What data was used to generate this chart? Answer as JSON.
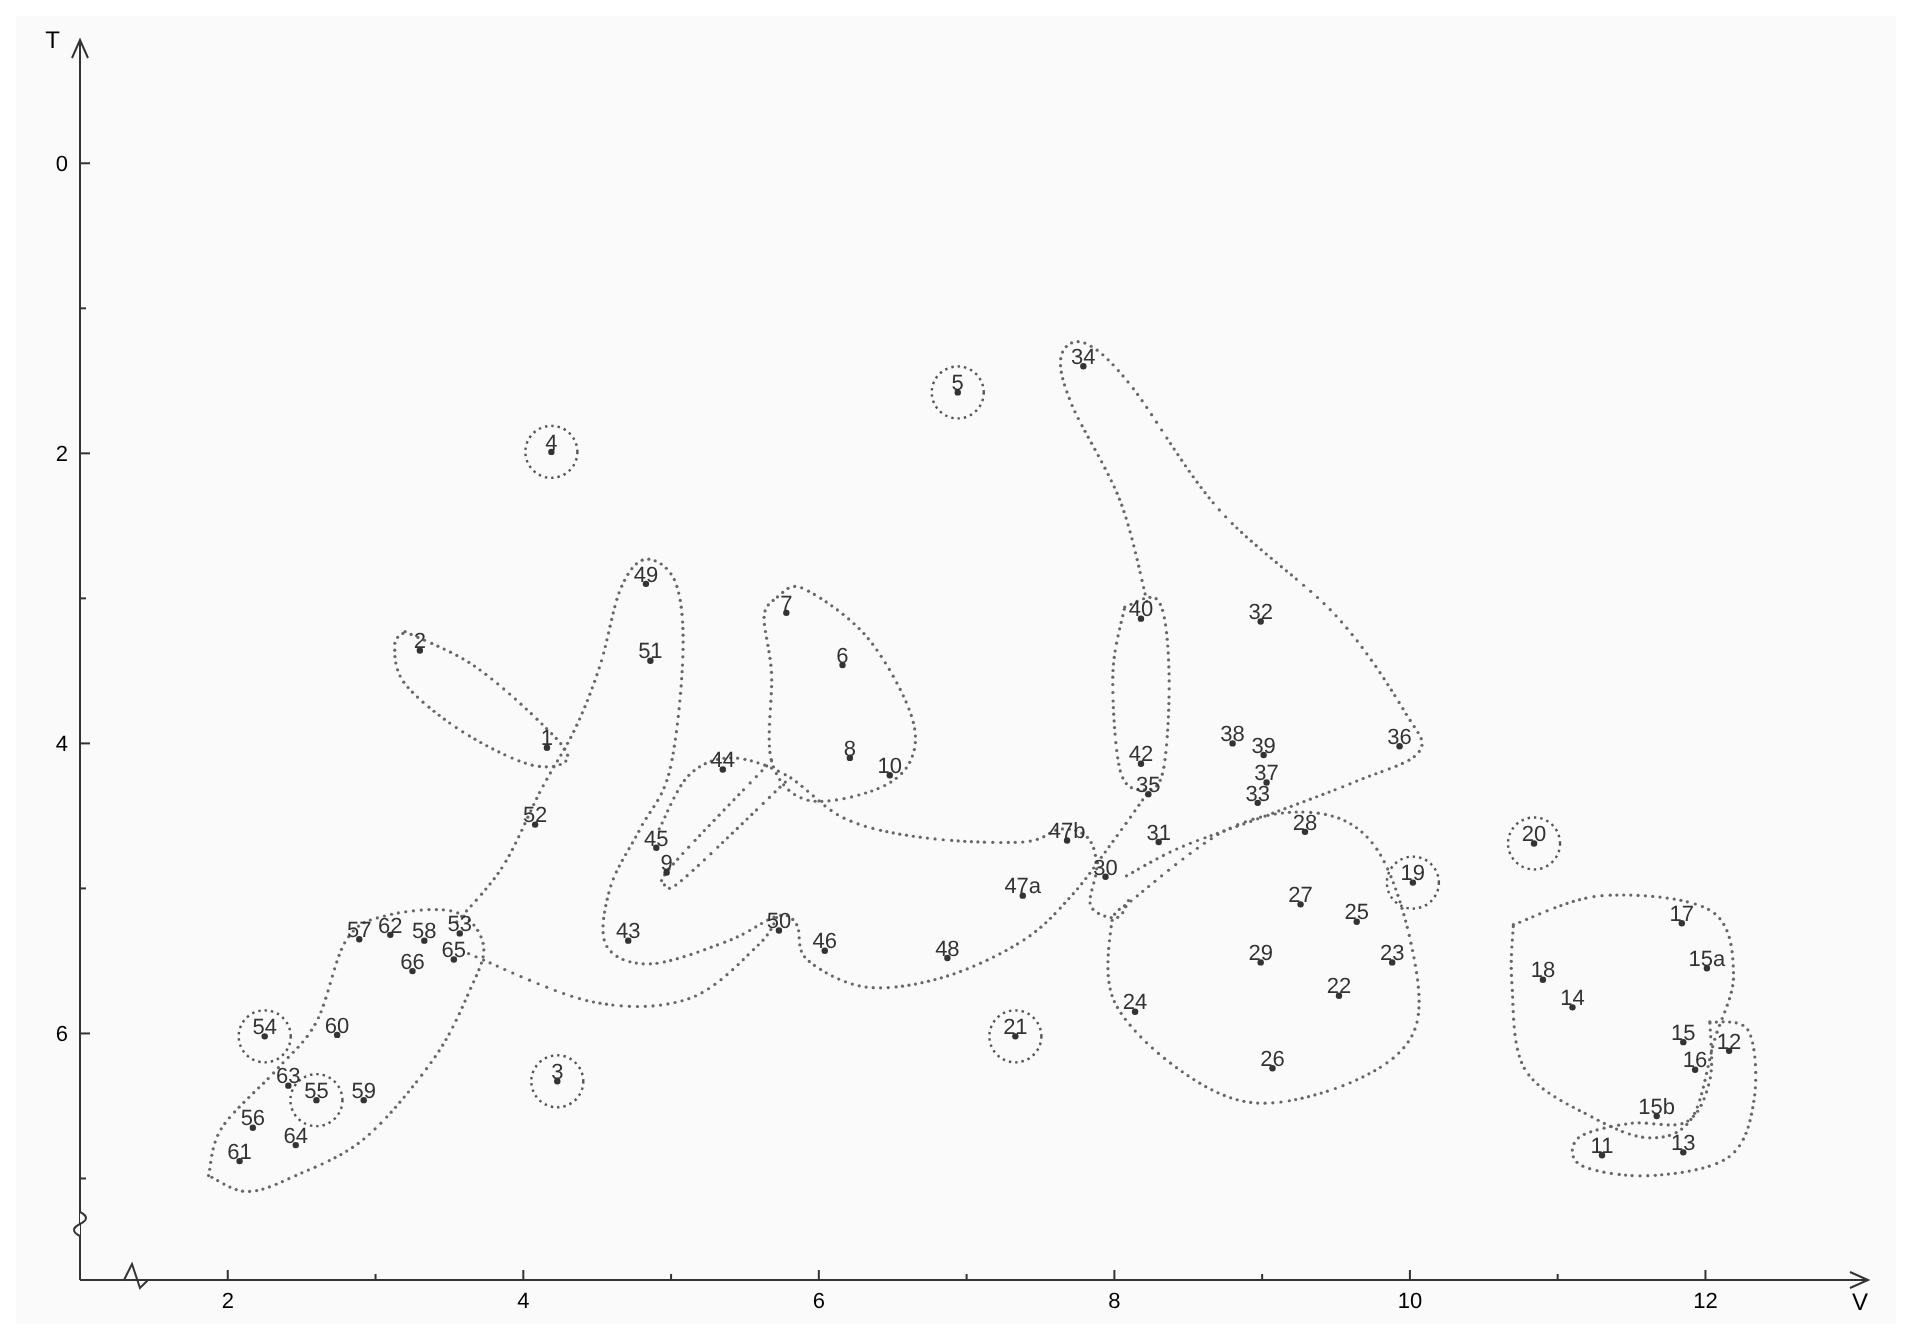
{
  "chart_data": {
    "type": "scatter",
    "xlabel": "V",
    "ylabel": "T",
    "xlim": [
      1,
      13.1
    ],
    "ylim": [
      7.7,
      -0.85
    ],
    "xticks": [
      2,
      {
        "value": 3,
        "label": null
      },
      4,
      {
        "value": 5,
        "label": null
      },
      6,
      {
        "value": 7,
        "label": null
      },
      8,
      {
        "value": 9,
        "label": null
      },
      10,
      {
        "value": 11,
        "label": null
      },
      12
    ],
    "yticks": [
      0,
      {
        "value": 1,
        "label": null
      },
      2,
      {
        "value": 3,
        "label": null
      },
      4,
      {
        "value": 5,
        "label": null
      },
      6,
      {
        "value": 7,
        "label": null
      }
    ],
    "grid": false,
    "annotations": [
      {
        "text": "1",
        "x": 4.16,
        "y": 4.03
      },
      {
        "text": "2",
        "x": 3.3,
        "y": 3.36
      },
      {
        "text": "3",
        "x": 4.23,
        "y": 6.33
      },
      {
        "text": "4",
        "x": 4.19,
        "y": 1.99
      },
      {
        "text": "5",
        "x": 6.94,
        "y": 1.58
      },
      {
        "text": "6",
        "x": 6.16,
        "y": 3.46
      },
      {
        "text": "7",
        "x": 5.78,
        "y": 3.1
      },
      {
        "text": "8",
        "x": 6.21,
        "y": 4.1
      },
      {
        "text": "9",
        "x": 4.97,
        "y": 4.89
      },
      {
        "text": "10",
        "x": 6.48,
        "y": 4.22
      },
      {
        "text": "11",
        "x": 11.3,
        "y": 6.84
      },
      {
        "text": "12",
        "x": 12.16,
        "y": 6.12
      },
      {
        "text": "13",
        "x": 11.85,
        "y": 6.82
      },
      {
        "text": "14",
        "x": 11.1,
        "y": 5.82
      },
      {
        "text": "15",
        "x": 11.85,
        "y": 6.06
      },
      {
        "text": "15a",
        "x": 12.01,
        "y": 5.55
      },
      {
        "text": "15b",
        "x": 11.67,
        "y": 6.57
      },
      {
        "text": "16",
        "x": 11.93,
        "y": 6.25
      },
      {
        "text": "17",
        "x": 11.84,
        "y": 5.24
      },
      {
        "text": "18",
        "x": 10.9,
        "y": 5.63
      },
      {
        "text": "19",
        "x": 10.02,
        "y": 4.96
      },
      {
        "text": "20",
        "x": 10.84,
        "y": 4.69
      },
      {
        "text": "21",
        "x": 7.33,
        "y": 6.02
      },
      {
        "text": "22",
        "x": 9.52,
        "y": 5.74
      },
      {
        "text": "23",
        "x": 9.88,
        "y": 5.51
      },
      {
        "text": "24",
        "x": 8.14,
        "y": 5.85
      },
      {
        "text": "25",
        "x": 9.64,
        "y": 5.23
      },
      {
        "text": "26",
        "x": 9.07,
        "y": 6.24
      },
      {
        "text": "27",
        "x": 9.26,
        "y": 5.11
      },
      {
        "text": "28",
        "x": 9.29,
        "y": 4.61
      },
      {
        "text": "29",
        "x": 8.99,
        "y": 5.51
      },
      {
        "text": "30",
        "x": 7.94,
        "y": 4.92
      },
      {
        "text": "31",
        "x": 8.3,
        "y": 4.68
      },
      {
        "text": "32",
        "x": 8.99,
        "y": 3.16
      },
      {
        "text": "33",
        "x": 8.97,
        "y": 4.41
      },
      {
        "text": "34",
        "x": 7.79,
        "y": 1.4
      },
      {
        "text": "35",
        "x": 8.23,
        "y": 4.35
      },
      {
        "text": "36",
        "x": 9.93,
        "y": 4.02
      },
      {
        "text": "37",
        "x": 9.03,
        "y": 4.27
      },
      {
        "text": "38",
        "x": 8.8,
        "y": 4.0
      },
      {
        "text": "39",
        "x": 9.01,
        "y": 4.08
      },
      {
        "text": "40",
        "x": 8.18,
        "y": 3.14
      },
      {
        "text": "42",
        "x": 8.18,
        "y": 4.14
      },
      {
        "text": "43",
        "x": 4.71,
        "y": 5.36
      },
      {
        "text": "44",
        "x": 5.35,
        "y": 4.18
      },
      {
        "text": "45",
        "x": 4.9,
        "y": 4.72
      },
      {
        "text": "46",
        "x": 6.04,
        "y": 5.43
      },
      {
        "text": "47a",
        "x": 7.38,
        "y": 5.05
      },
      {
        "text": "47b",
        "x": 7.68,
        "y": 4.67
      },
      {
        "text": "48",
        "x": 6.87,
        "y": 5.48
      },
      {
        "text": "49",
        "x": 4.83,
        "y": 2.9
      },
      {
        "text": "50",
        "x": 5.73,
        "y": 5.29
      },
      {
        "text": "51",
        "x": 4.86,
        "y": 3.43
      },
      {
        "text": "52",
        "x": 4.08,
        "y": 4.56
      },
      {
        "text": "53",
        "x": 3.57,
        "y": 5.31
      },
      {
        "text": "54",
        "x": 2.25,
        "y": 6.02
      },
      {
        "text": "55",
        "x": 2.6,
        "y": 6.46
      },
      {
        "text": "56",
        "x": 2.17,
        "y": 6.65
      },
      {
        "text": "57",
        "x": 2.89,
        "y": 5.35
      },
      {
        "text": "58",
        "x": 3.33,
        "y": 5.36
      },
      {
        "text": "59",
        "x": 2.92,
        "y": 6.46
      },
      {
        "text": "60",
        "x": 2.74,
        "y": 6.01
      },
      {
        "text": "61",
        "x": 2.08,
        "y": 6.88
      },
      {
        "text": "62",
        "x": 3.1,
        "y": 5.32
      },
      {
        "text": "63",
        "x": 2.41,
        "y": 6.36
      },
      {
        "text": "64",
        "x": 2.46,
        "y": 6.77
      },
      {
        "text": "65",
        "x": 3.53,
        "y": 5.49
      },
      {
        "text": "66",
        "x": 3.25,
        "y": 5.57
      }
    ],
    "series": [
      {
        "marker": "circle",
        "color": "#333333",
        "x": [
          4.16,
          3.3,
          4.23,
          4.19,
          6.94,
          6.16,
          5.78,
          6.21,
          4.97,
          6.48,
          11.3,
          12.16,
          11.85,
          11.1,
          11.85,
          12.01,
          11.67,
          11.93,
          11.84,
          10.9,
          10.02,
          10.84,
          7.33,
          9.52,
          9.88,
          8.14,
          9.64,
          9.07,
          9.26,
          9.29,
          8.99,
          7.94,
          8.3,
          8.99,
          8.97,
          7.79,
          8.23,
          9.93,
          9.03,
          8.8,
          9.01,
          8.18,
          8.18,
          4.71,
          5.35,
          4.9,
          6.04,
          7.38,
          7.68,
          6.87,
          4.83,
          5.73,
          4.86,
          4.08,
          3.57,
          2.25,
          2.6,
          2.17,
          2.89,
          3.33,
          2.92,
          2.74,
          2.08,
          3.1,
          2.41,
          2.46,
          3.53,
          3.25
        ],
        "values": [
          4.03,
          3.36,
          6.33,
          1.99,
          1.58,
          3.46,
          3.1,
          4.1,
          4.89,
          4.22,
          6.84,
          6.12,
          6.82,
          5.82,
          6.06,
          5.55,
          6.57,
          6.25,
          5.24,
          5.63,
          4.96,
          4.69,
          6.02,
          5.74,
          5.51,
          5.85,
          5.23,
          6.24,
          5.11,
          4.61,
          5.51,
          4.92,
          4.68,
          3.16,
          4.41,
          1.4,
          4.35,
          4.02,
          4.27,
          4.0,
          4.08,
          3.14,
          4.14,
          5.36,
          4.18,
          4.72,
          5.43,
          5.05,
          4.67,
          5.48,
          2.9,
          5.29,
          3.43,
          4.56,
          5.31,
          6.02,
          6.46,
          6.65,
          5.35,
          5.36,
          6.46,
          6.01,
          6.88,
          5.32,
          6.36,
          6.77,
          5.49,
          5.57
        ]
      },
      {
        "marker": "circle",
        "color": "#555555",
        "x": [
          4.23,
          4.19,
          6.94,
          10.02,
          10.84,
          7.33,
          2.25,
          2.6
        ],
        "values": [
          6.33,
          1.99,
          1.58,
          4.96,
          4.69,
          6.02,
          6.02,
          6.46
        ]
      }
    ]
  }
}
